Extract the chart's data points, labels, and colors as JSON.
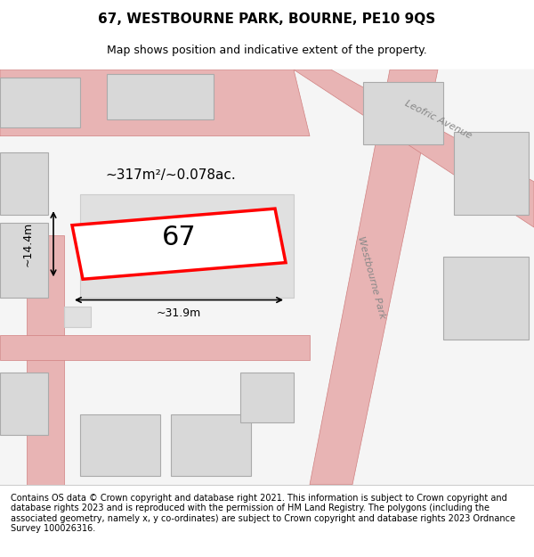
{
  "title": "67, WESTBOURNE PARK, BOURNE, PE10 9QS",
  "subtitle": "Map shows position and indicative extent of the property.",
  "footer": "Contains OS data © Crown copyright and database right 2021. This information is subject to Crown copyright and database rights 2023 and is reproduced with the permission of HM Land Registry. The polygons (including the associated geometry, namely x, y co-ordinates) are subject to Crown copyright and database rights 2023 Ordnance Survey 100026316.",
  "bg_color": "#f5f5f5",
  "map_bg": "#f0f0f0",
  "road_color": "#e8b4b4",
  "road_outline_color": "#d08080",
  "building_fill": "#d8d8d8",
  "building_edge": "#aaaaaa",
  "plot_fill": "#ffffff",
  "plot_edge": "#ff0000",
  "plot_lw": 2.5,
  "plot_label": "67",
  "area_label": "~317m²/~0.078ac.",
  "width_label": "~31.9m",
  "height_label": "~14.4m",
  "street_label_1": "Westbourne Park",
  "street_label_2": "Leofric Avenue",
  "title_fontsize": 11,
  "subtitle_fontsize": 9,
  "footer_fontsize": 7
}
